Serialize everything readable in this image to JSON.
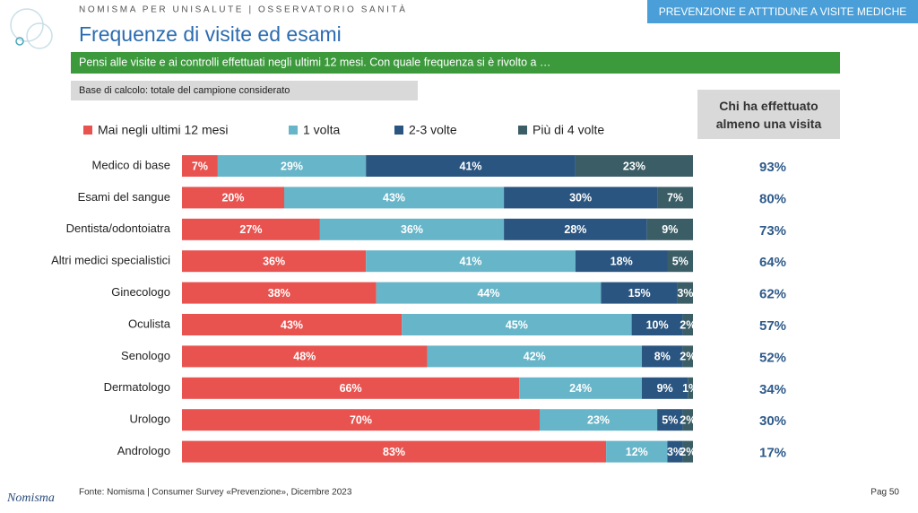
{
  "header": {
    "kicker": "NOMISMA PER UNISALUTE | OSSERVATORIO SANITÀ",
    "section": "PREVENZIONE E ATTTIDUNE A VISITE MEDICHE",
    "title": "Frequenze di visite ed esami",
    "question": "Pensi alle visite e ai controlli effettuati negli ultimi 12 mesi. Con quale frequenza si è rivolto a …",
    "base": "Base di calcolo: totale del campione considerato"
  },
  "chart_data": {
    "type": "bar",
    "stacked": true,
    "orientation": "horizontal",
    "xlim": [
      0,
      100
    ],
    "categories": [
      "Medico di base",
      "Esami del sangue",
      "Dentista/odontoiatra",
      "Altri medici specialistici",
      "Ginecologo",
      "Oculista",
      "Senologo",
      "Dermatologo",
      "Urologo",
      "Andrologo"
    ],
    "series": [
      {
        "name": "Mai negli ultimi 12 mesi",
        "color": "#e8534f",
        "values": [
          7,
          20,
          27,
          36,
          38,
          43,
          48,
          66,
          70,
          83
        ],
        "value_labels": [
          "7%",
          "20%",
          "27%",
          "36%",
          "38%",
          "43%",
          "48%",
          "66%",
          "70%",
          "83%"
        ]
      },
      {
        "name": "1 volta",
        "color": "#67b5c8",
        "values": [
          29,
          43,
          36,
          41,
          44,
          45,
          42,
          24,
          23,
          12
        ],
        "value_labels": [
          "29%",
          "43%",
          "36%",
          "41%",
          "44%",
          "45%",
          "42%",
          "24%",
          "23%",
          "12%"
        ]
      },
      {
        "name": "2-3 volte",
        "color": "#2a5580",
        "values": [
          41,
          30,
          28,
          18,
          15,
          10,
          8,
          9,
          5,
          3
        ],
        "value_labels": [
          "41%",
          "30%",
          "28%",
          "18%",
          "15%",
          "10%",
          "8%",
          "9%",
          "5%",
          "3%"
        ]
      },
      {
        "name": "Più di 4 volte",
        "color": "#3b5e66",
        "values": [
          23,
          7,
          9,
          5,
          3,
          2,
          2,
          1,
          2,
          2
        ],
        "value_labels": [
          "23%",
          "7%",
          "9%",
          "5%",
          "3%",
          "2%",
          "2%",
          "1%",
          "2%",
          "2%"
        ]
      }
    ],
    "summary": {
      "title": "Chi ha effettuato almeno una visita",
      "color": "#2e5a8a",
      "values": [
        93,
        80,
        73,
        64,
        62,
        57,
        52,
        34,
        30,
        17
      ],
      "value_labels": [
        "93%",
        "80%",
        "73%",
        "64%",
        "62%",
        "57%",
        "52%",
        "34%",
        "30%",
        "17%"
      ]
    }
  },
  "footer": {
    "source": "Fonte: Nomisma | Consumer Survey «Prevenzione», Dicembre 2023",
    "page": "Pag 50",
    "logo": "Nomisma"
  }
}
